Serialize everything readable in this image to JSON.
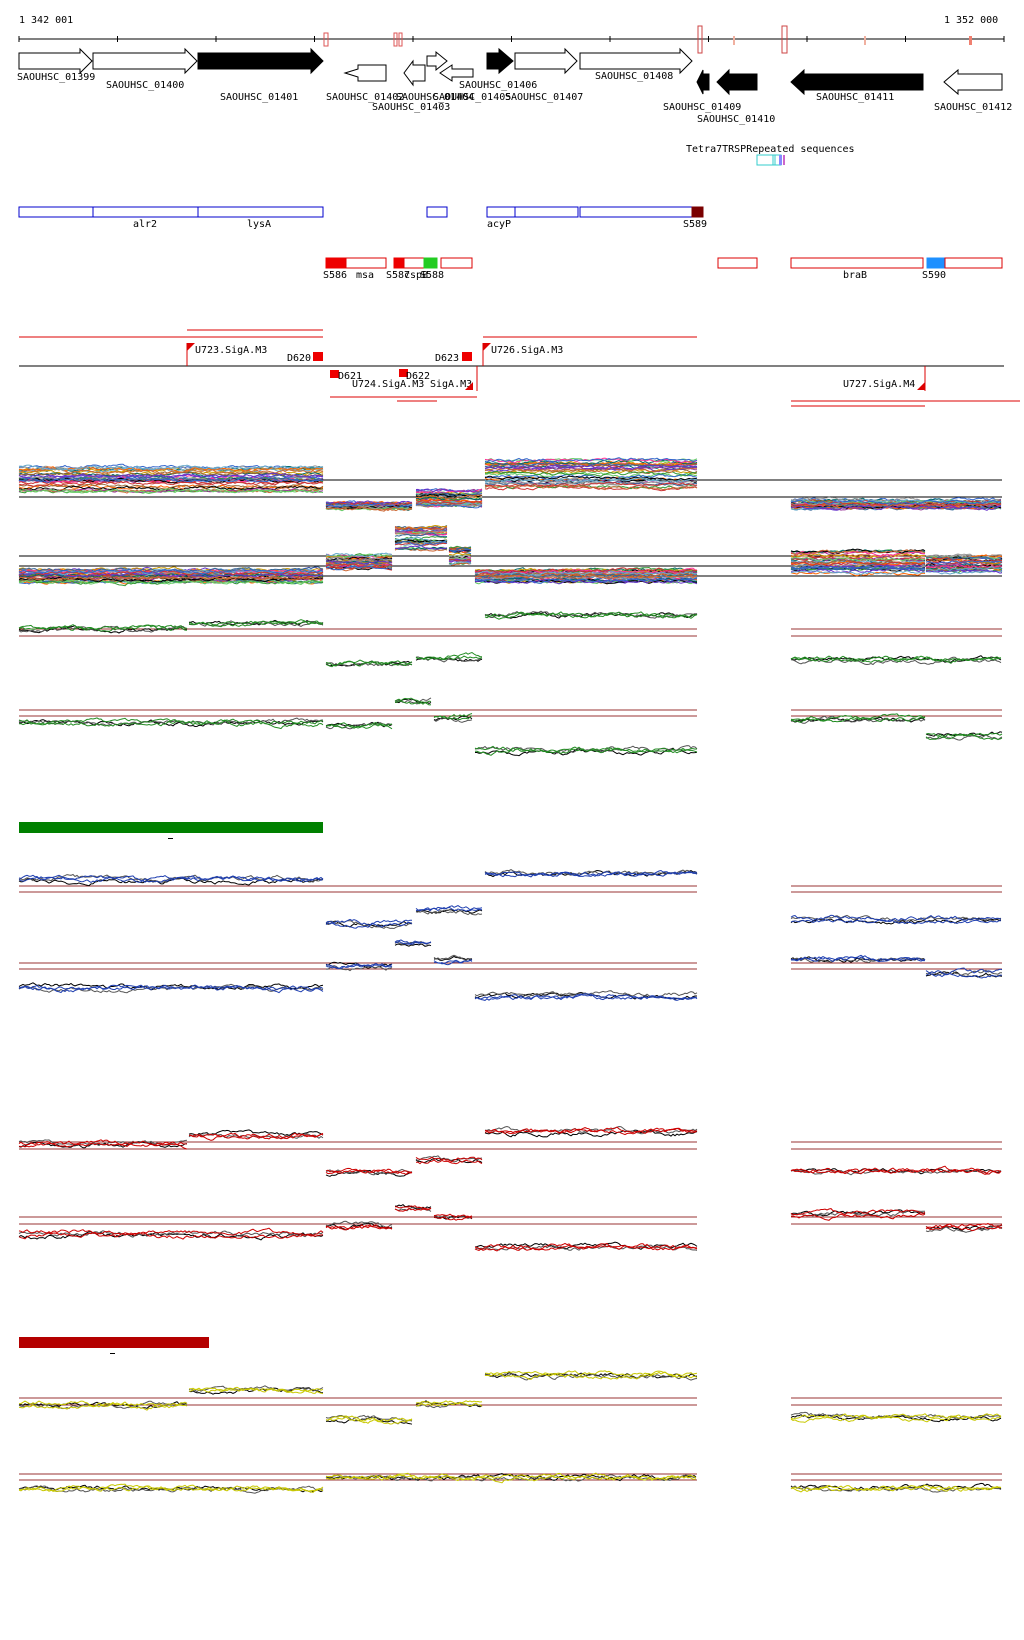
{
  "ruler": {
    "start_label": "1 342 001",
    "end_label": "1 352 000",
    "start": 1342001,
    "end": 1352000
  },
  "genes": [
    {
      "id": "g1399",
      "label": "SAOUHSC_01399",
      "strand": "+",
      "fill": "#ffffff"
    },
    {
      "id": "g1400",
      "label": "SAOUHSC_01400",
      "strand": "+",
      "fill": "#ffffff"
    },
    {
      "id": "g1401",
      "label": "SAOUHSC_01401",
      "strand": "+",
      "fill": "#000000"
    },
    {
      "id": "g1402",
      "label": "SAOUHSC_01402",
      "strand": "-",
      "fill": "#ffffff"
    },
    {
      "id": "g1403",
      "label": "SAOUHSC_01403",
      "strand": "-",
      "fill": "#ffffff"
    },
    {
      "id": "g1404",
      "label": "SAOUHSC_01404",
      "strand": "+",
      "fill": "#ffffff"
    },
    {
      "id": "g1405",
      "label": "SAOUHSC_01405",
      "strand": "-",
      "fill": "#ffffff"
    },
    {
      "id": "g1406",
      "label": "SAOUHSC_01406",
      "strand": "+",
      "fill": "#000000"
    },
    {
      "id": "g1407",
      "label": "SAOUHSC_01407",
      "strand": "+",
      "fill": "#ffffff"
    },
    {
      "id": "g1408",
      "label": "SAOUHSC_01408",
      "strand": "+",
      "fill": "#ffffff"
    },
    {
      "id": "g1409",
      "label": "SAOUHSC_01409",
      "strand": "-",
      "fill": "#000000"
    },
    {
      "id": "g1410",
      "label": "SAOUHSC_01410",
      "strand": "-",
      "fill": "#000000"
    },
    {
      "id": "g1411",
      "label": "SAOUHSC_01411",
      "strand": "-",
      "fill": "#000000"
    },
    {
      "id": "g1412",
      "label": "SAOUHSC_01412",
      "strand": "-",
      "fill": "#ffffff"
    }
  ],
  "repeats_label": "Tetra7TRSPRepeated sequences",
  "operons": [
    "alr2",
    "lysA",
    "acyP",
    "S589"
  ],
  "srna_labels": [
    "S586",
    "msa",
    "S587",
    "cspB",
    "S588",
    "braB",
    "S590"
  ],
  "tu_labels": [
    "U723.SigA.M3",
    "D620",
    "D621",
    "U724.SigA.M3",
    "D622",
    "SigA.M3",
    "D623",
    "U726.SigA.M3",
    "U727.SigA.M4"
  ],
  "colors": {
    "gene_stroke": "#000000",
    "operon": "#0000cc",
    "srna": "#dd0000",
    "srna_green": "#22cc22",
    "srna_blue": "#1e90ff",
    "repeat": "#33cccc",
    "tu": "#dd0000",
    "threshold": "#993333",
    "green_track": "#228b22",
    "green_bar": "#008000",
    "blue_track": "#1f3fb0",
    "red_track": "#cc0000",
    "red_bar": "#b40000",
    "yellow_track": "#c8c800"
  }
}
